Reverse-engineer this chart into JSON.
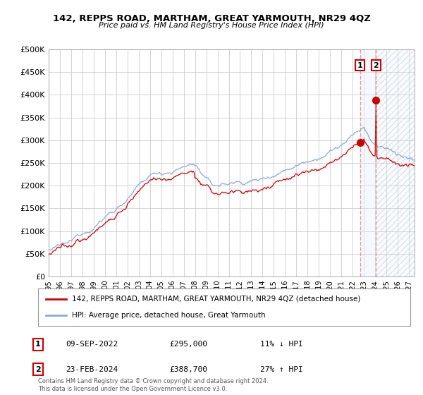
{
  "title": "142, REPPS ROAD, MARTHAM, GREAT YARMOUTH, NR29 4QZ",
  "subtitle": "Price paid vs. HM Land Registry's House Price Index (HPI)",
  "hpi_label": "HPI: Average price, detached house, Great Yarmouth",
  "property_label": "142, REPPS ROAD, MARTHAM, GREAT YARMOUTH, NR29 4QZ (detached house)",
  "hpi_color": "#88aadd",
  "property_color": "#cc0000",
  "point_color": "#cc0000",
  "annotation1_date": "09-SEP-2022",
  "annotation1_price": "£295,000",
  "annotation1_hpi": "11% ↓ HPI",
  "annotation2_date": "23-FEB-2024",
  "annotation2_price": "£388,700",
  "annotation2_hpi": "27% ↑ HPI",
  "ylim": [
    0,
    500000
  ],
  "yticks": [
    0,
    50000,
    100000,
    150000,
    200000,
    250000,
    300000,
    350000,
    400000,
    450000,
    500000
  ],
  "footer": "Contains HM Land Registry data © Crown copyright and database right 2024.\nThis data is licensed under the Open Government Licence v3.0.",
  "bg_color": "#ffffff",
  "grid_color": "#cccccc",
  "shade_color": "#ddeeff",
  "dashed_color": "#ee8888",
  "ev1_year": 2022.667,
  "ev2_year": 2024.083,
  "ev1_price": 295000,
  "ev2_price": 388700
}
